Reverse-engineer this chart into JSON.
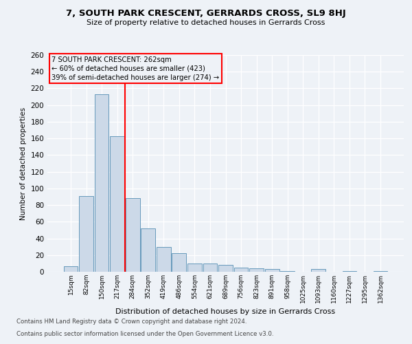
{
  "title": "7, SOUTH PARK CRESCENT, GERRARDS CROSS, SL9 8HJ",
  "subtitle": "Size of property relative to detached houses in Gerrards Cross",
  "xlabel": "Distribution of detached houses by size in Gerrards Cross",
  "ylabel": "Number of detached properties",
  "bar_color": "#ccd9e8",
  "bar_edge_color": "#6699bb",
  "categories": [
    "15sqm",
    "82sqm",
    "150sqm",
    "217sqm",
    "284sqm",
    "352sqm",
    "419sqm",
    "486sqm",
    "554sqm",
    "621sqm",
    "689sqm",
    "756sqm",
    "823sqm",
    "891sqm",
    "958sqm",
    "1025sqm",
    "1093sqm",
    "1160sqm",
    "1227sqm",
    "1295sqm",
    "1362sqm"
  ],
  "values": [
    7,
    91,
    213,
    163,
    88,
    52,
    30,
    22,
    10,
    10,
    8,
    5,
    4,
    3,
    1,
    0,
    3,
    0,
    1,
    0,
    1
  ],
  "ylim": [
    0,
    260
  ],
  "yticks": [
    0,
    20,
    40,
    60,
    80,
    100,
    120,
    140,
    160,
    180,
    200,
    220,
    240,
    260
  ],
  "annotation_line1": "7 SOUTH PARK CRESCENT: 262sqm",
  "annotation_line2": "← 60% of detached houses are smaller (423)",
  "annotation_line3": "39% of semi-detached houses are larger (274) →",
  "vline_position": 3.5,
  "footer1": "Contains HM Land Registry data © Crown copyright and database right 2024.",
  "footer2": "Contains public sector information licensed under the Open Government Licence v3.0.",
  "background_color": "#eef2f7",
  "grid_color": "#d8dfe8"
}
